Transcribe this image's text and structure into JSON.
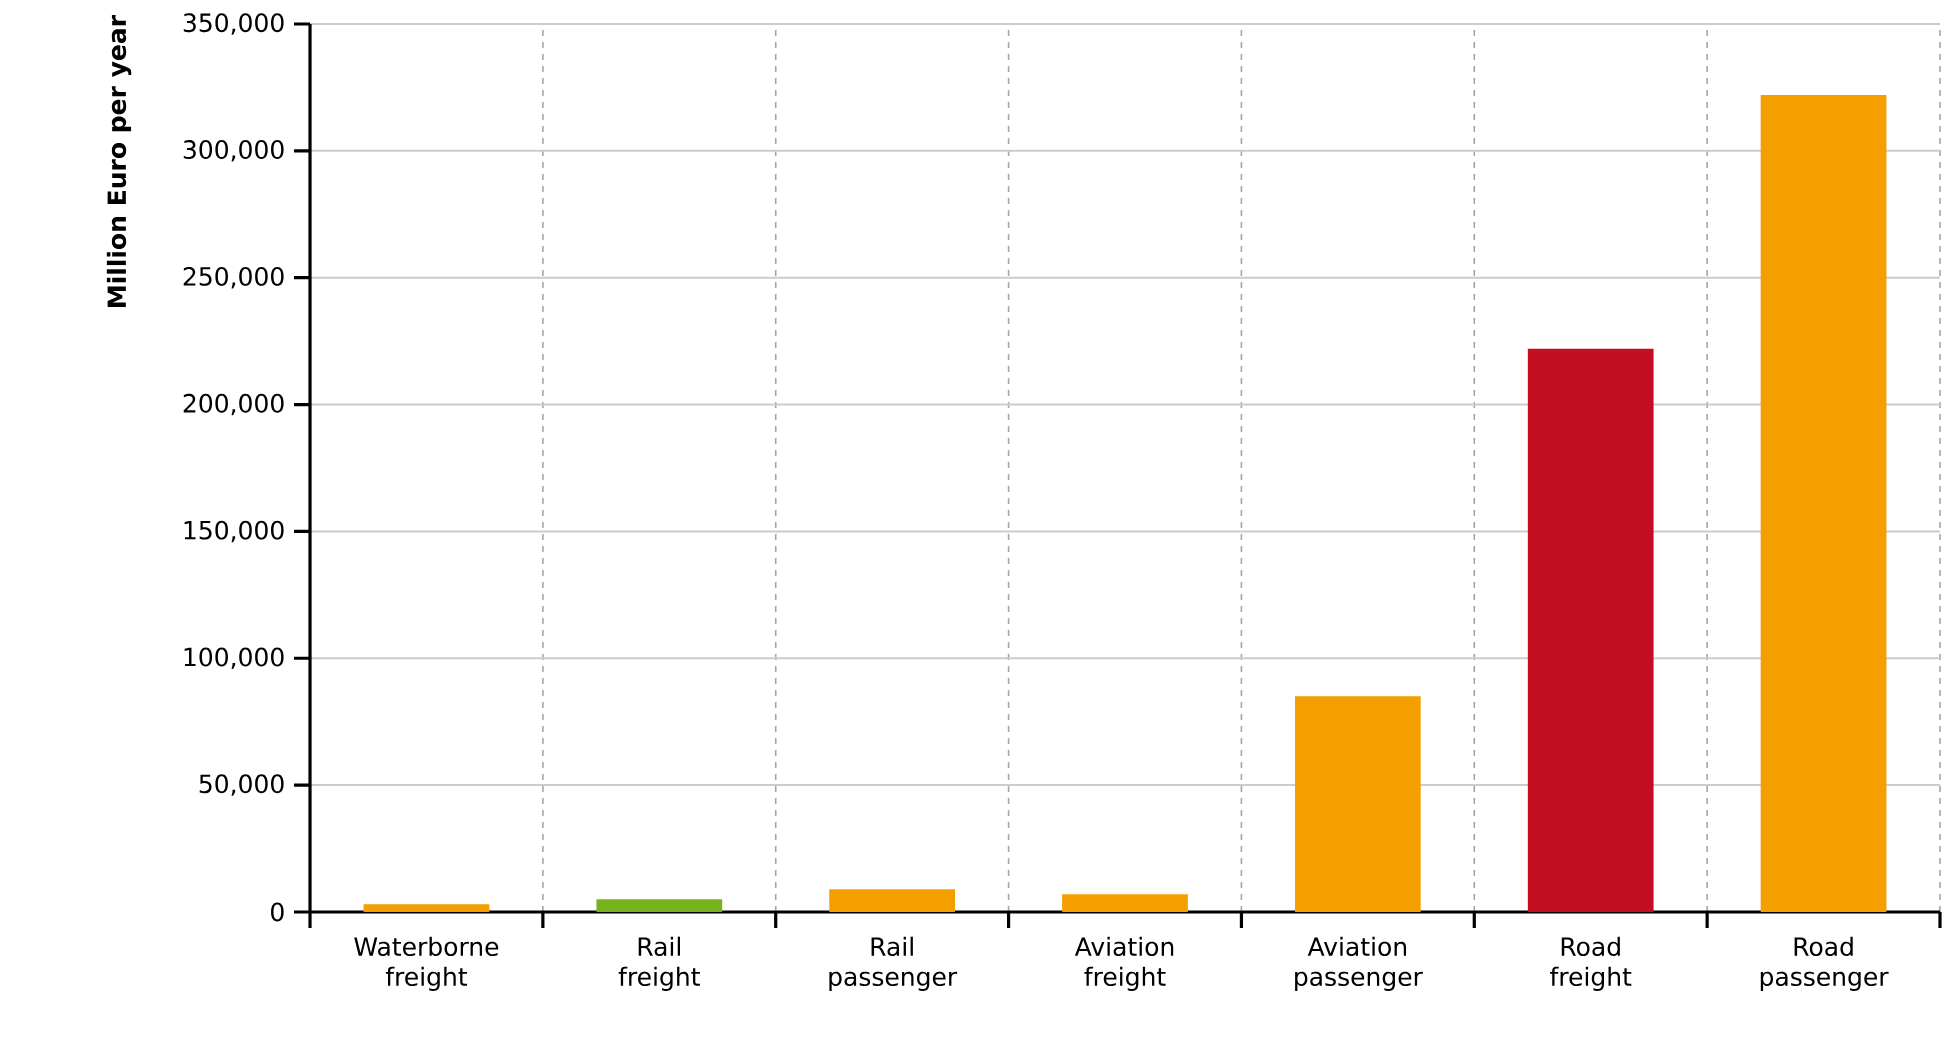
{
  "chart_data": {
    "type": "bar",
    "ylabel": "Million Euro per year",
    "categories": [
      "Waterborne\nfreight",
      "Rail\nfreight",
      "Rail\npassenger",
      "Aviation\nfreight",
      "Aviation\npassenger",
      "Road\nfreight",
      "Road\npassenger"
    ],
    "values": [
      3000,
      5000,
      9000,
      7000,
      85000,
      222000,
      322000
    ],
    "colors": [
      "#f59e00",
      "#76b21d",
      "#f59e00",
      "#f59e00",
      "#f59e00",
      "#c30d20",
      "#f59e00"
    ],
    "ylim": [
      0,
      350000
    ],
    "yticks": [
      {
        "value": 0,
        "label": "0"
      },
      {
        "value": 50000,
        "label": "50,000"
      },
      {
        "value": 100000,
        "label": "100,000"
      },
      {
        "value": 150000,
        "label": "150,000"
      },
      {
        "value": 200000,
        "label": "200,000"
      },
      {
        "value": 250000,
        "label": "250,000"
      },
      {
        "value": 300000,
        "label": "300,000"
      },
      {
        "value": 350000,
        "label": "350,000"
      }
    ],
    "grid": true
  }
}
